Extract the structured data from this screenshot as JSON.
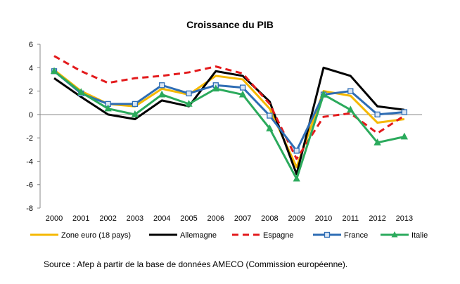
{
  "chart_data": {
    "type": "line",
    "title": "Croissance du PIB",
    "xlabel": "",
    "ylabel": "",
    "x": [
      "2000",
      "2001",
      "2002",
      "2003",
      "2004",
      "2005",
      "2006",
      "2007",
      "2008",
      "2009",
      "2010",
      "2011",
      "2012",
      "2013"
    ],
    "yticks": [
      "6",
      "4",
      "2",
      "0",
      "-2",
      "-4",
      "-6",
      "-8"
    ],
    "ylim": [
      -8,
      6
    ],
    "grid": false,
    "legend_position": "bottom",
    "series": [
      {
        "name": "Zone euro (18 pays)",
        "color": "#F5B800",
        "style": "solid",
        "marker": "none",
        "values": [
          3.8,
          2.0,
          0.9,
          0.7,
          2.2,
          1.7,
          3.3,
          3.0,
          0.5,
          -4.5,
          2.0,
          1.6,
          -0.7,
          -0.4
        ]
      },
      {
        "name": "Allemagne",
        "color": "#000000",
        "style": "solid",
        "marker": "none",
        "values": [
          3.1,
          1.5,
          0.0,
          -0.4,
          1.2,
          0.7,
          3.7,
          3.3,
          1.1,
          -5.1,
          4.0,
          3.3,
          0.7,
          0.4
        ]
      },
      {
        "name": "Espagne",
        "color": "#E31A1C",
        "style": "dashed",
        "marker": "none",
        "values": [
          5.0,
          3.7,
          2.7,
          3.1,
          3.3,
          3.6,
          4.1,
          3.5,
          0.9,
          -3.8,
          -0.2,
          0.1,
          -1.6,
          -0.1
        ]
      },
      {
        "name": "France",
        "color": "#2E6DB4",
        "style": "solid",
        "marker": "square",
        "values": [
          3.7,
          1.8,
          0.9,
          0.9,
          2.5,
          1.8,
          2.5,
          2.3,
          -0.1,
          -3.1,
          1.7,
          2.0,
          0.0,
          0.2
        ]
      },
      {
        "name": "Italie",
        "color": "#2BAA5C",
        "style": "solid",
        "marker": "triangle",
        "values": [
          3.7,
          1.9,
          0.5,
          0.0,
          1.7,
          0.9,
          2.2,
          1.7,
          -1.2,
          -5.5,
          1.7,
          0.4,
          -2.4,
          -1.9
        ]
      }
    ]
  },
  "source": "Source : Afep à partir de la base de données AMECO (Commission européenne)."
}
